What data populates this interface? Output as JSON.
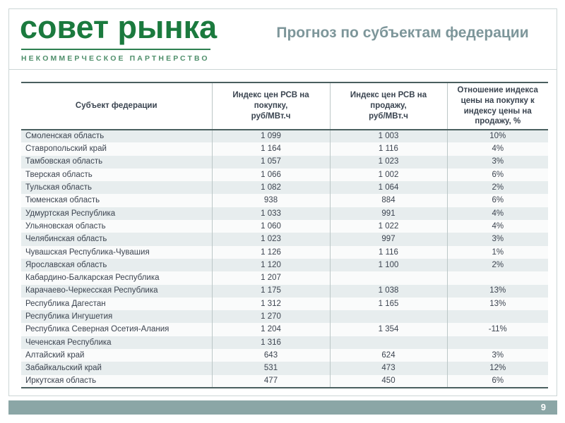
{
  "logo": {
    "name": "совет рынка",
    "subtitle": "НЕКОММЕРЧЕСКОЕ ПАРТНЕРСТВО"
  },
  "header": {
    "title": "Прогноз по субъектам федерации"
  },
  "footer": {
    "page_number": "9"
  },
  "colors": {
    "logo_green": "#1b7a3e",
    "subtitle_green": "#4f8f6b",
    "title_gray_teal": "#7d969a",
    "footer_bar": "#8ba6a6",
    "row_shade": "#e7edee",
    "table_dark_border": "#4a5f5f",
    "table_light_border": "#bcc7c7",
    "text_dark": "#3c4450"
  },
  "table": {
    "headers": [
      "Субъект федерации",
      "Индекс цен РСВ на\nпокупку,\nруб/МВт.ч",
      "Индекс цен РСВ на\nпродажу,\nруб/МВт.ч",
      "Отношение индекса цены на покупку к индексу цены на продажу, %"
    ],
    "rows": [
      [
        "Смоленская область",
        "1 099",
        "1 003",
        "10%"
      ],
      [
        "Ставропольский край",
        "1 164",
        "1 116",
        "4%"
      ],
      [
        "Тамбовская область",
        "1 057",
        "1 023",
        "3%"
      ],
      [
        "Тверская область",
        "1 066",
        "1 002",
        "6%"
      ],
      [
        "Тульская область",
        "1 082",
        "1 064",
        "2%"
      ],
      [
        "Тюменская область",
        "938",
        "884",
        "6%"
      ],
      [
        "Удмуртская Республика",
        "1 033",
        "991",
        "4%"
      ],
      [
        "Ульяновская область",
        "1 060",
        "1 022",
        "4%"
      ],
      [
        "Челябинская область",
        "1 023",
        "997",
        "3%"
      ],
      [
        "Чувашская Республика-Чувашия",
        "1 126",
        "1 116",
        "1%"
      ],
      [
        "Ярославская область",
        "1 120",
        "1 100",
        "2%"
      ],
      [
        "Кабардино-Балкарская Республика",
        "1 207",
        "",
        ""
      ],
      [
        "Карачаево-Черкесская Республика",
        "1 175",
        "1 038",
        "13%"
      ],
      [
        "Республика Дагестан",
        "1 312",
        "1 165",
        "13%"
      ],
      [
        "Республика Ингушетия",
        "1 270",
        "",
        ""
      ],
      [
        "Республика Северная Осетия-Алания",
        "1 204",
        "1 354",
        "-11%"
      ],
      [
        "Чеченская Республика",
        "1 316",
        "",
        ""
      ],
      [
        "Алтайский край",
        "643",
        "624",
        "3%"
      ],
      [
        "Забайкальский край",
        "531",
        "473",
        "12%"
      ],
      [
        "Иркутская область",
        "477",
        "450",
        "6%"
      ]
    ]
  }
}
